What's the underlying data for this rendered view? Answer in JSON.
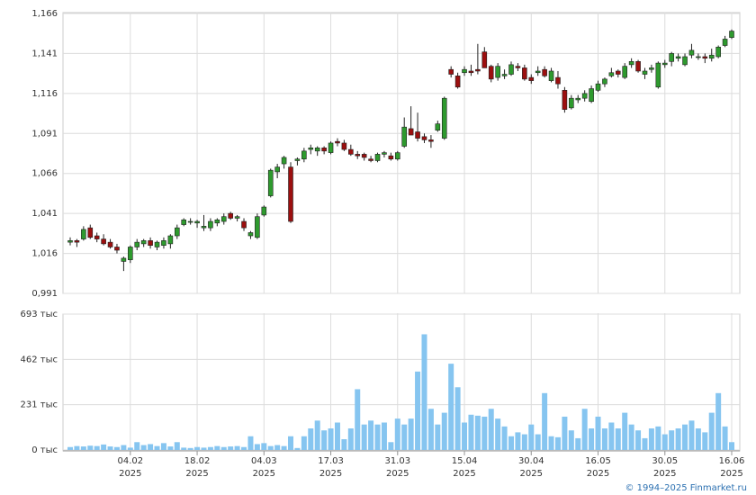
{
  "chart_data": [
    {
      "type": "candlestick",
      "ylim": [
        0.991,
        1.166
      ],
      "yticks": [
        {
          "value": 0.991,
          "label": "0,991"
        },
        {
          "value": 1.016,
          "label": "1,016"
        },
        {
          "value": 1.041,
          "label": "1,041"
        },
        {
          "value": 1.066,
          "label": "1,066"
        },
        {
          "value": 1.091,
          "label": "1,091"
        },
        {
          "value": 1.116,
          "label": "1,116"
        },
        {
          "value": 1.141,
          "label": "1,141"
        },
        {
          "value": 1.166,
          "label": "1,166"
        }
      ],
      "grid": true,
      "up_color": "#2e9a2e",
      "down_color": "#9c0f0f",
      "open": [
        1.023,
        1.024,
        1.025,
        1.032,
        1.027,
        1.025,
        1.023,
        1.02,
        1.011,
        1.012,
        1.02,
        1.022,
        1.024,
        1.02,
        1.021,
        1.022,
        1.027,
        1.034,
        1.036,
        1.035,
        1.032,
        1.032,
        1.035,
        1.036,
        1.041,
        1.038,
        1.036,
        1.027,
        1.026,
        1.04,
        1.052,
        1.067,
        1.072,
        1.07,
        1.074,
        1.075,
        1.081,
        1.08,
        1.082,
        1.079,
        1.086,
        1.085,
        1.081,
        1.078,
        1.078,
        1.075,
        1.074,
        1.078,
        1.077,
        1.075,
        1.083,
        1.094,
        1.092,
        1.089,
        1.087,
        1.093,
        1.088,
        1.131,
        1.127,
        1.129,
        1.13,
        1.131,
        1.142,
        1.133,
        1.126,
        1.127,
        1.128,
        1.133,
        1.132,
        1.126,
        1.129,
        1.131,
        1.124,
        1.126,
        1.118,
        1.107,
        1.112,
        1.113,
        1.111,
        1.118,
        1.122,
        1.127,
        1.13,
        1.126,
        1.134,
        1.136,
        1.128,
        1.131,
        1.12,
        1.134,
        1.136,
        1.138,
        1.134,
        1.14,
        1.139,
        1.139,
        1.138,
        1.139,
        1.146,
        1.151
      ],
      "high": [
        1.026,
        1.025,
        1.033,
        1.034,
        1.029,
        1.028,
        1.025,
        1.022,
        1.014,
        1.021,
        1.025,
        1.025,
        1.026,
        1.024,
        1.026,
        1.028,
        1.034,
        1.038,
        1.038,
        1.037,
        1.04,
        1.038,
        1.038,
        1.041,
        1.042,
        1.04,
        1.038,
        1.03,
        1.041,
        1.046,
        1.069,
        1.072,
        1.077,
        1.073,
        1.076,
        1.082,
        1.084,
        1.083,
        1.083,
        1.086,
        1.088,
        1.087,
        1.084,
        1.08,
        1.079,
        1.077,
        1.079,
        1.08,
        1.079,
        1.08,
        1.101,
        1.108,
        1.104,
        1.091,
        1.09,
        1.099,
        1.114,
        1.133,
        1.129,
        1.133,
        1.134,
        1.147,
        1.145,
        1.134,
        1.135,
        1.131,
        1.136,
        1.135,
        1.134,
        1.128,
        1.133,
        1.133,
        1.132,
        1.13,
        1.12,
        1.115,
        1.115,
        1.118,
        1.121,
        1.124,
        1.126,
        1.132,
        1.131,
        1.135,
        1.138,
        1.137,
        1.132,
        1.134,
        1.136,
        1.137,
        1.142,
        1.141,
        1.141,
        1.147,
        1.141,
        1.141,
        1.144,
        1.146,
        1.152,
        1.156
      ],
      "low": [
        1.021,
        1.02,
        1.024,
        1.025,
        1.023,
        1.021,
        1.019,
        1.016,
        1.005,
        1.01,
        1.018,
        1.02,
        1.019,
        1.018,
        1.019,
        1.019,
        1.025,
        1.033,
        1.034,
        1.032,
        1.03,
        1.03,
        1.033,
        1.034,
        1.037,
        1.036,
        1.03,
        1.025,
        1.025,
        1.039,
        1.051,
        1.063,
        1.069,
        1.035,
        1.071,
        1.073,
        1.078,
        1.077,
        1.078,
        1.078,
        1.083,
        1.08,
        1.077,
        1.075,
        1.074,
        1.073,
        1.073,
        1.076,
        1.074,
        1.074,
        1.082,
        1.09,
        1.086,
        1.085,
        1.082,
        1.092,
        1.087,
        1.126,
        1.119,
        1.127,
        1.127,
        1.128,
        1.132,
        1.123,
        1.124,
        1.125,
        1.127,
        1.13,
        1.124,
        1.122,
        1.127,
        1.126,
        1.123,
        1.119,
        1.104,
        1.106,
        1.11,
        1.111,
        1.11,
        1.117,
        1.12,
        1.126,
        1.126,
        1.125,
        1.132,
        1.129,
        1.125,
        1.129,
        1.119,
        1.132,
        1.133,
        1.136,
        1.133,
        1.138,
        1.137,
        1.135,
        1.136,
        1.138,
        1.145,
        1.15
      ],
      "close": [
        1.024,
        1.023,
        1.031,
        1.026,
        1.025,
        1.022,
        1.02,
        1.018,
        1.013,
        1.02,
        1.023,
        1.024,
        1.021,
        1.023,
        1.024,
        1.027,
        1.032,
        1.037,
        1.036,
        1.036,
        1.033,
        1.036,
        1.037,
        1.039,
        1.038,
        1.039,
        1.032,
        1.029,
        1.039,
        1.045,
        1.068,
        1.07,
        1.076,
        1.036,
        1.075,
        1.08,
        1.082,
        1.082,
        1.08,
        1.085,
        1.085,
        1.081,
        1.078,
        1.077,
        1.076,
        1.074,
        1.078,
        1.079,
        1.075,
        1.079,
        1.095,
        1.09,
        1.088,
        1.087,
        1.086,
        1.097,
        1.113,
        1.128,
        1.12,
        1.131,
        1.129,
        1.13,
        1.132,
        1.125,
        1.133,
        1.128,
        1.134,
        1.132,
        1.125,
        1.124,
        1.13,
        1.127,
        1.13,
        1.122,
        1.106,
        1.113,
        1.113,
        1.116,
        1.119,
        1.122,
        1.125,
        1.129,
        1.128,
        1.133,
        1.136,
        1.13,
        1.13,
        1.132,
        1.135,
        1.135,
        1.141,
        1.139,
        1.139,
        1.143,
        1.139,
        1.138,
        1.14,
        1.145,
        1.15,
        1.155
      ]
    },
    {
      "type": "bar",
      "ylim": [
        0,
        693
      ],
      "yticks": [
        {
          "value": 0,
          "label": "0 тыс"
        },
        {
          "value": 231,
          "label": "231 тыс"
        },
        {
          "value": 462,
          "label": "462 тыс"
        },
        {
          "value": 693,
          "label": "693 тыс"
        }
      ],
      "grid": true,
      "color": "#86c5f0",
      "categories": [
        null,
        null,
        null,
        null,
        null,
        null,
        null,
        null,
        null,
        "04.02",
        null,
        null,
        null,
        null,
        null,
        null,
        null,
        null,
        null,
        "18.02",
        null,
        null,
        null,
        null,
        null,
        null,
        null,
        null,
        null,
        "04.03",
        null,
        null,
        null,
        null,
        null,
        null,
        null,
        null,
        null,
        "17.03",
        null,
        null,
        null,
        null,
        null,
        null,
        null,
        null,
        null,
        "31.03",
        null,
        null,
        null,
        null,
        null,
        null,
        null,
        null,
        null,
        "15.04",
        null,
        null,
        null,
        null,
        null,
        null,
        null,
        null,
        null,
        "30.04",
        null,
        null,
        null,
        null,
        null,
        null,
        null,
        null,
        null,
        "16.05",
        null,
        null,
        null,
        null,
        null,
        null,
        null,
        null,
        null,
        "30.05",
        null,
        null,
        null,
        null,
        null,
        null,
        null,
        null,
        null,
        "16.06"
      ],
      "year": "2025",
      "values": [
        15,
        20,
        18,
        22,
        20,
        28,
        18,
        15,
        25,
        12,
        40,
        25,
        30,
        20,
        35,
        18,
        40,
        12,
        10,
        15,
        12,
        15,
        20,
        15,
        18,
        20,
        15,
        70,
        30,
        35,
        20,
        25,
        20,
        70,
        10,
        70,
        110,
        150,
        100,
        110,
        140,
        55,
        110,
        310,
        130,
        150,
        130,
        140,
        40,
        160,
        130,
        160,
        400,
        590,
        210,
        130,
        190,
        440,
        320,
        140,
        180,
        175,
        170,
        210,
        160,
        120,
        70,
        90,
        80,
        130,
        80,
        290,
        70,
        65,
        170,
        100,
        60,
        210,
        110,
        170,
        110,
        140,
        110,
        190,
        130,
        100,
        60,
        110,
        120,
        80,
        100,
        110,
        130,
        150,
        110,
        90,
        190,
        290,
        120,
        40
      ],
      "source": "© 1994–2025 Finmarket.ru"
    }
  ]
}
